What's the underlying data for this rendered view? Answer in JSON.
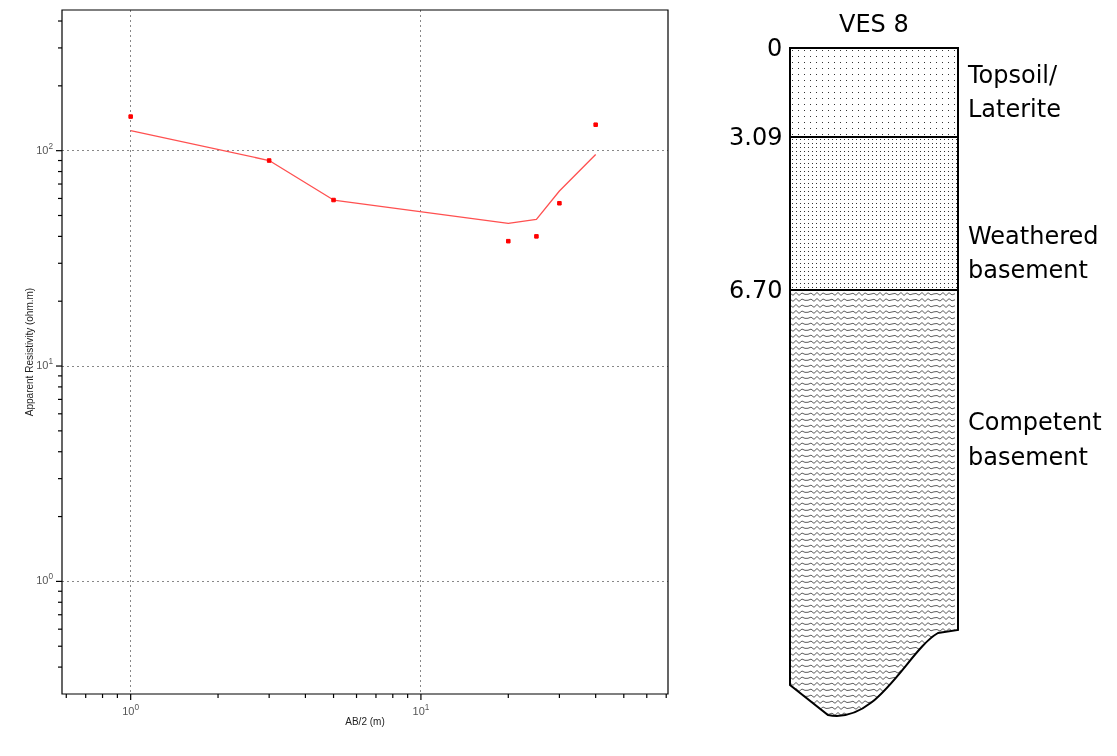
{
  "chart_data": [
    {
      "type": "scatter",
      "xlabel": "AB/2 (m)",
      "ylabel": "Apparent Resistivity (ohm.m)",
      "log": "xy",
      "grid": true,
      "legend": false,
      "xlim": [
        0.58,
        71
      ],
      "ylim": [
        0.3,
        450
      ],
      "xticks": [
        {
          "value": 0.6,
          "label": null
        },
        {
          "value": 0.7,
          "label": null
        },
        {
          "value": 0.8,
          "label": null
        },
        {
          "value": 0.9,
          "label": null
        },
        {
          "value": 1,
          "label": "10$^{0}$"
        },
        {
          "value": 2,
          "label": null
        },
        {
          "value": 3,
          "label": null
        },
        {
          "value": 4,
          "label": null
        },
        {
          "value": 5,
          "label": null
        },
        {
          "value": 6,
          "label": null
        },
        {
          "value": 7,
          "label": null
        },
        {
          "value": 8,
          "label": null
        },
        {
          "value": 9,
          "label": null
        },
        {
          "value": 10,
          "label": "10$^{1}$"
        },
        {
          "value": 20,
          "label": null
        },
        {
          "value": 30,
          "label": null
        },
        {
          "value": 40,
          "label": null
        },
        {
          "value": 50,
          "label": null
        },
        {
          "value": 60,
          "label": null
        },
        {
          "value": 70,
          "label": null
        }
      ],
      "yticks": [
        {
          "value": 0.4,
          "label": null
        },
        {
          "value": 0.5,
          "label": null
        },
        {
          "value": 0.6,
          "label": null
        },
        {
          "value": 0.7,
          "label": null
        },
        {
          "value": 0.8,
          "label": null
        },
        {
          "value": 0.9,
          "label": null
        },
        {
          "value": 1,
          "label": "10$^{0}$"
        },
        {
          "value": 2,
          "label": null
        },
        {
          "value": 3,
          "label": null
        },
        {
          "value": 4,
          "label": null
        },
        {
          "value": 5,
          "label": null
        },
        {
          "value": 6,
          "label": null
        },
        {
          "value": 7,
          "label": null
        },
        {
          "value": 8,
          "label": null
        },
        {
          "value": 9,
          "label": null
        },
        {
          "value": 10,
          "label": "10$^{1}$"
        },
        {
          "value": 20,
          "label": null
        },
        {
          "value": 30,
          "label": null
        },
        {
          "value": 40,
          "label": null
        },
        {
          "value": 50,
          "label": null
        },
        {
          "value": 60,
          "label": null
        },
        {
          "value": 70,
          "label": null
        },
        {
          "value": 80,
          "label": null
        },
        {
          "value": 90,
          "label": null
        },
        {
          "value": 100,
          "label": "10$^{2}$"
        },
        {
          "value": 200,
          "label": null
        },
        {
          "value": 300,
          "label": null
        },
        {
          "value": 400,
          "label": null
        }
      ],
      "series": [
        {
          "type": "scatter",
          "marker": "square",
          "color": "#ff0000",
          "x": [
            1,
            3,
            5,
            20,
            25,
            30,
            40
          ],
          "values": [
            144,
            90,
            59,
            38,
            40,
            57,
            132
          ]
        },
        {
          "type": "line",
          "marker": "none",
          "color": "#ff5050",
          "x": [
            1,
            3,
            5,
            20,
            25,
            30,
            40
          ],
          "values": [
            124,
            90,
            59,
            46,
            48,
            65,
            96
          ]
        }
      ]
    },
    {
      "type": "other",
      "title": "VES 8",
      "categories": [
        "Topsoil/Laterite",
        "Weathered basement",
        "Competent basement"
      ],
      "annotations": [
        "0",
        "3.09",
        "6.70"
      ]
    }
  ]
}
